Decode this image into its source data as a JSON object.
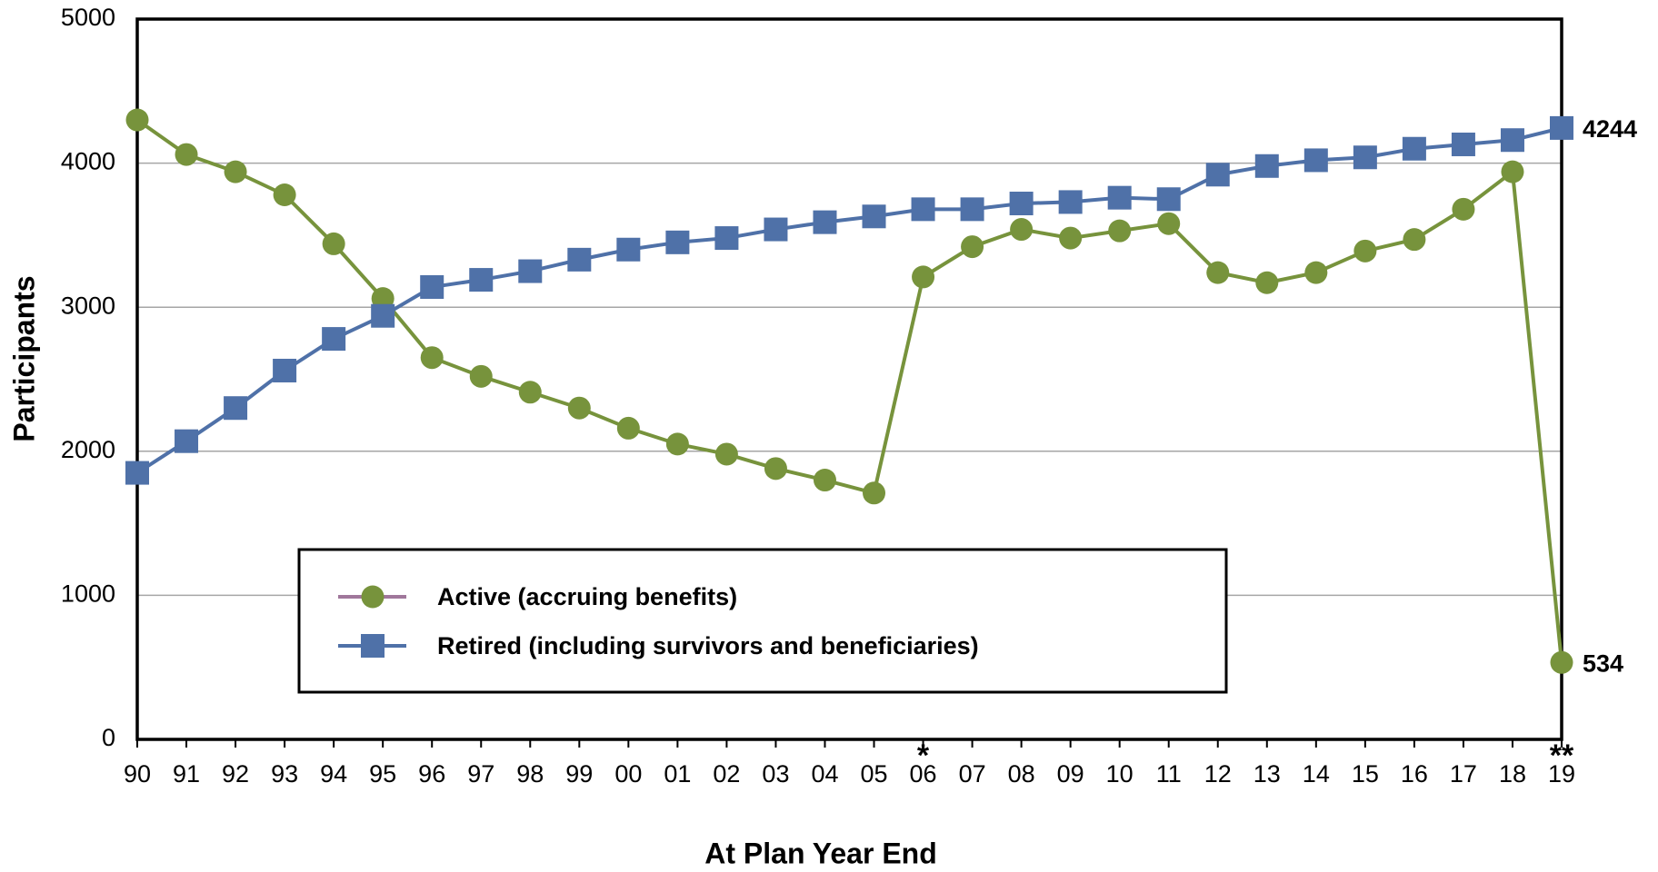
{
  "chart_data": {
    "type": "line",
    "x_label": "At Plan Year End",
    "y_label": "Participants",
    "categories": [
      "90",
      "91",
      "92",
      "93",
      "94",
      "95",
      "96",
      "97",
      "98",
      "99",
      "00",
      "01",
      "02",
      "03",
      "04",
      "05",
      "06",
      "07",
      "08",
      "09",
      "10",
      "11",
      "12",
      "13",
      "14",
      "15",
      "16",
      "17",
      "18",
      "19"
    ],
    "series": [
      {
        "name": "Active (accruing benefits)",
        "color": "#77933c",
        "marker": "circle",
        "values": [
          4300,
          4060,
          3940,
          3780,
          3440,
          3060,
          2650,
          2520,
          2410,
          2300,
          2160,
          2050,
          1980,
          1880,
          1800,
          1710,
          3210,
          3420,
          3540,
          3480,
          3530,
          3580,
          3240,
          3170,
          3240,
          3390,
          3470,
          3680,
          3940,
          534
        ]
      },
      {
        "name": "Retired (including survivors and beneficiaries)",
        "color": "#4f71a8",
        "marker": "square",
        "values": [
          1850,
          2070,
          2300,
          2560,
          2780,
          2940,
          3140,
          3190,
          3250,
          3330,
          3400,
          3450,
          3480,
          3540,
          3590,
          3630,
          3680,
          3680,
          3720,
          3730,
          3760,
          3750,
          3920,
          3980,
          4020,
          4040,
          4100,
          4130,
          4160,
          4244
        ]
      }
    ],
    "ylim": [
      0,
      5000
    ],
    "yticks": [
      0,
      1000,
      2000,
      3000,
      4000,
      5000
    ],
    "grid": true,
    "annotations": [
      {
        "text": "*",
        "at": "06"
      },
      {
        "text": "**",
        "at": "19"
      }
    ],
    "annotation_color": "#31859c"
  }
}
